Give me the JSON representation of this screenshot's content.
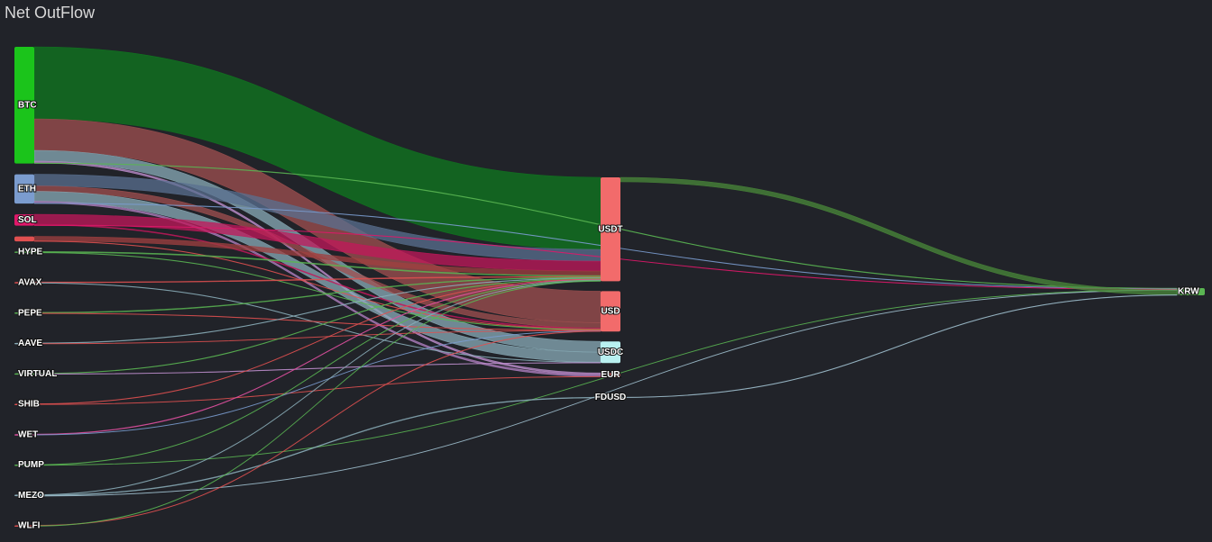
{
  "chart_data": {
    "type": "sankey",
    "title": "Net OutFlow",
    "nodes": [
      {
        "name": "BTC",
        "color": "#1bc41b",
        "links": [
          {
            "target": "USDT",
            "value": 80,
            "color": "#0f7a1f"
          },
          {
            "target": "USD",
            "value": 35,
            "color": "#a05050"
          },
          {
            "target": "USDC",
            "value": 12,
            "color": "#8aacb8"
          },
          {
            "target": "EUR",
            "value": 2,
            "color": "#c090d0"
          },
          {
            "target": "KRW",
            "value": 0.6,
            "color": "#5ab552"
          }
        ]
      },
      {
        "name": "ETH",
        "color": "#7b9ccf",
        "links": [
          {
            "target": "USDT",
            "value": 13,
            "color": "#5a7090"
          },
          {
            "target": "USD",
            "value": 6,
            "color": "#a05050"
          },
          {
            "target": "USDC",
            "value": 11,
            "color": "#8aacb8"
          },
          {
            "target": "EUR",
            "value": 2,
            "color": "#b080c0"
          },
          {
            "target": "KRW",
            "value": 0.5,
            "color": "#7b9ccf"
          }
        ]
      },
      {
        "name": "SOL",
        "color": "#e0186a",
        "links": [
          {
            "target": "USDT",
            "value": 11,
            "color": "#c2185b"
          },
          {
            "target": "USD",
            "value": 1,
            "color": "#c2185b"
          },
          {
            "target": "KRW",
            "value": 0.5,
            "color": "#e0186a"
          }
        ]
      },
      {
        "name": null,
        "color": "#e05050",
        "links": [
          {
            "target": "USDT",
            "value": 5,
            "color": "#a04040"
          },
          {
            "target": "USD",
            "value": 0.5,
            "color": "#e05050"
          }
        ]
      },
      {
        "name": "HYPE",
        "color": "#5ab552",
        "links": [
          {
            "target": "USDT",
            "value": 1,
            "color": "#5ab552"
          },
          {
            "target": "USD",
            "value": 0.5,
            "color": "#5ab552"
          }
        ]
      },
      {
        "name": "AVAX",
        "color": "#e05050",
        "links": [
          {
            "target": "USDT",
            "value": 0.8,
            "color": "#e05050"
          },
          {
            "target": "USDC",
            "value": 0.5,
            "color": "#8aacb8"
          }
        ]
      },
      {
        "name": "PEPE",
        "color": "#5ab552",
        "links": [
          {
            "target": "USDT",
            "value": 0.8,
            "color": "#5ab552"
          },
          {
            "target": "USD",
            "value": 0.5,
            "color": "#e05050"
          }
        ]
      },
      {
        "name": "AAVE",
        "color": "#8aacb8",
        "links": [
          {
            "target": "USDT",
            "value": 0.6,
            "color": "#8aacb8"
          },
          {
            "target": "USD",
            "value": 0.4,
            "color": "#e05050"
          }
        ]
      },
      {
        "name": "VIRTUAL",
        "color": "#5ab552",
        "links": [
          {
            "target": "USDT",
            "value": 0.6,
            "color": "#5ab552"
          },
          {
            "target": "USDC",
            "value": 0.5,
            "color": "#c090d0"
          }
        ]
      },
      {
        "name": "SHIB",
        "color": "#e05050",
        "links": [
          {
            "target": "USDT",
            "value": 0.5,
            "color": "#e05050"
          },
          {
            "target": "EUR",
            "value": 0.4,
            "color": "#e05050"
          }
        ]
      },
      {
        "name": "WET",
        "color": "#e050a0",
        "links": [
          {
            "target": "USDT",
            "value": 0.6,
            "color": "#e050a0"
          },
          {
            "target": "USD",
            "value": 0.4,
            "color": "#7b9ccf"
          }
        ]
      },
      {
        "name": "PUMP",
        "color": "#5ab552",
        "links": [
          {
            "target": "USDT",
            "value": 0.5,
            "color": "#5ab552"
          },
          {
            "target": "KRW",
            "value": 0.4,
            "color": "#5ab552"
          }
        ]
      },
      {
        "name": "MEZO",
        "color": "#8aacb8",
        "links": [
          {
            "target": "USDT",
            "value": 0.5,
            "color": "#8aacb8"
          },
          {
            "target": "FDUSD",
            "value": 0.8,
            "color": "#8aacb8"
          },
          {
            "target": "KRW",
            "value": 0.4,
            "color": "#a0c0d0"
          }
        ]
      },
      {
        "name": "WLFI",
        "color": "#e05050",
        "links": [
          {
            "target": "USD",
            "value": 0.5,
            "color": "#e05050"
          },
          {
            "target": "USDT",
            "value": 0.5,
            "color": "#5ab552"
          }
        ]
      },
      {
        "name": "USDT",
        "color": "#f26b6b",
        "links": [
          {
            "target": "KRW",
            "value": 5,
            "color": "#4a8a3a"
          }
        ]
      },
      {
        "name": "USD",
        "color": "#f26b6b",
        "links": []
      },
      {
        "name": "USDC",
        "color": "#b8f0f0",
        "links": []
      },
      {
        "name": "EUR",
        "color": "#f26b6b",
        "links": []
      },
      {
        "name": "FDUSD",
        "color": "#8aacb8",
        "links": [
          {
            "target": "KRW",
            "value": 0.5,
            "color": "#a0c0d0"
          }
        ]
      },
      {
        "name": "KRW",
        "color": "#5ab552",
        "links": []
      }
    ]
  }
}
